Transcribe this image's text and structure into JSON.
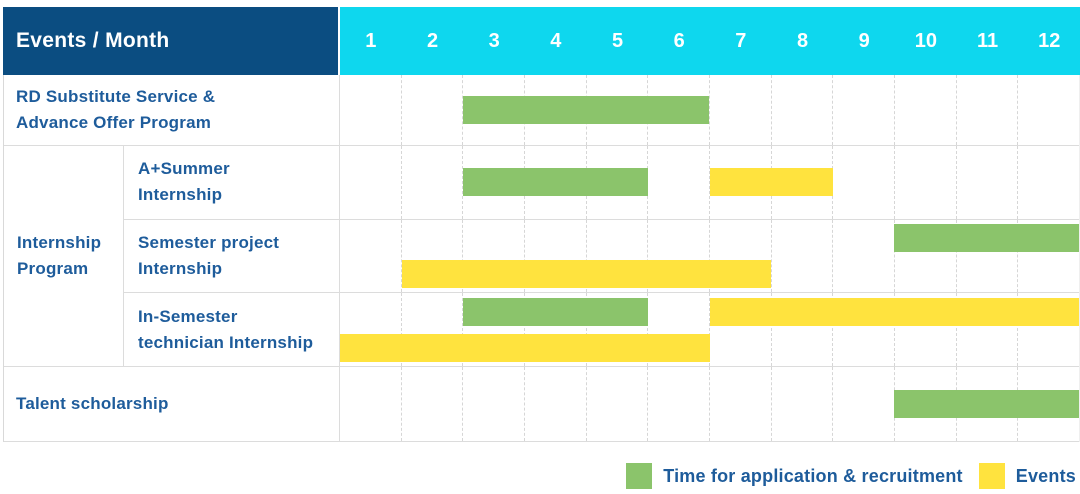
{
  "chart_data": {
    "type": "gantt",
    "title": "Events / Month",
    "corner_label": "Events / Month",
    "unit": "month",
    "x_ticks": [
      "1",
      "2",
      "3",
      "4",
      "5",
      "6",
      "7",
      "8",
      "9",
      "10",
      "11",
      "12"
    ],
    "x_range": [
      1,
      12
    ],
    "grid": "dashed-vertical-month-lines",
    "legend_position": "bottom-right",
    "group_label_lines": [
      "Internship",
      "Program"
    ],
    "rows": [
      {
        "event": "RD Substitute Service & Advance Offer Program",
        "label_lines": [
          "RD Substitute Service &",
          "Advance Offer Program"
        ],
        "group": null,
        "tracks": [
          [
            {
              "series": "Time for application & recruitment",
              "color_key": "green",
              "start_month": 3,
              "end_month": 6
            }
          ]
        ]
      },
      {
        "event": "A+Summer Internship",
        "label_lines": [
          "A+Summer",
          "Internship"
        ],
        "group": "Internship Program",
        "tracks": [
          [
            {
              "series": "Time for application & recruitment",
              "color_key": "green",
              "start_month": 3,
              "end_month": 5
            },
            {
              "series": "Events",
              "color_key": "yellow",
              "start_month": 7,
              "end_month": 8
            }
          ]
        ]
      },
      {
        "event": "Semester project Internship",
        "label_lines": [
          "Semester project",
          "Internship"
        ],
        "group": "Internship Program",
        "tracks": [
          [
            {
              "series": "Time for application & recruitment",
              "color_key": "green",
              "start_month": 10,
              "end_month": 12
            }
          ],
          [
            {
              "series": "Events",
              "color_key": "yellow",
              "start_month": 2,
              "end_month": 7
            }
          ]
        ]
      },
      {
        "event": "In-Semester technician Internship",
        "label_lines": [
          "In-Semester",
          "technician Internship"
        ],
        "group": "Internship Program",
        "tracks": [
          [
            {
              "series": "Time for application & recruitment",
              "color_key": "green",
              "start_month": 3,
              "end_month": 5
            },
            {
              "series": "Events",
              "color_key": "yellow",
              "start_month": 7,
              "end_month": 12
            }
          ],
          [
            {
              "series": "Events",
              "color_key": "yellow",
              "start_month": 1,
              "end_month": 6
            }
          ]
        ]
      },
      {
        "event": "Talent scholarship",
        "label_lines": [
          "Talent scholarship"
        ],
        "group": null,
        "tracks": [
          [
            {
              "series": "Time for application & recruitment",
              "color_key": "green",
              "start_month": 10,
              "end_month": 12
            }
          ]
        ]
      }
    ],
    "legend": [
      {
        "color_key": "green",
        "color": "#8bc46b",
        "label": "Time for application & recruitment"
      },
      {
        "color_key": "yellow",
        "color": "#ffe33e",
        "label": "Events"
      }
    ],
    "colors": {
      "green": "#8bc46b",
      "yellow": "#ffe33e",
      "header_bg": "#0b4d81",
      "months_header_bg": "#0ed7ee",
      "header_text": "#ffffff",
      "label_text": "#1e5c9b",
      "grid_line": "#dcdcdc"
    }
  }
}
